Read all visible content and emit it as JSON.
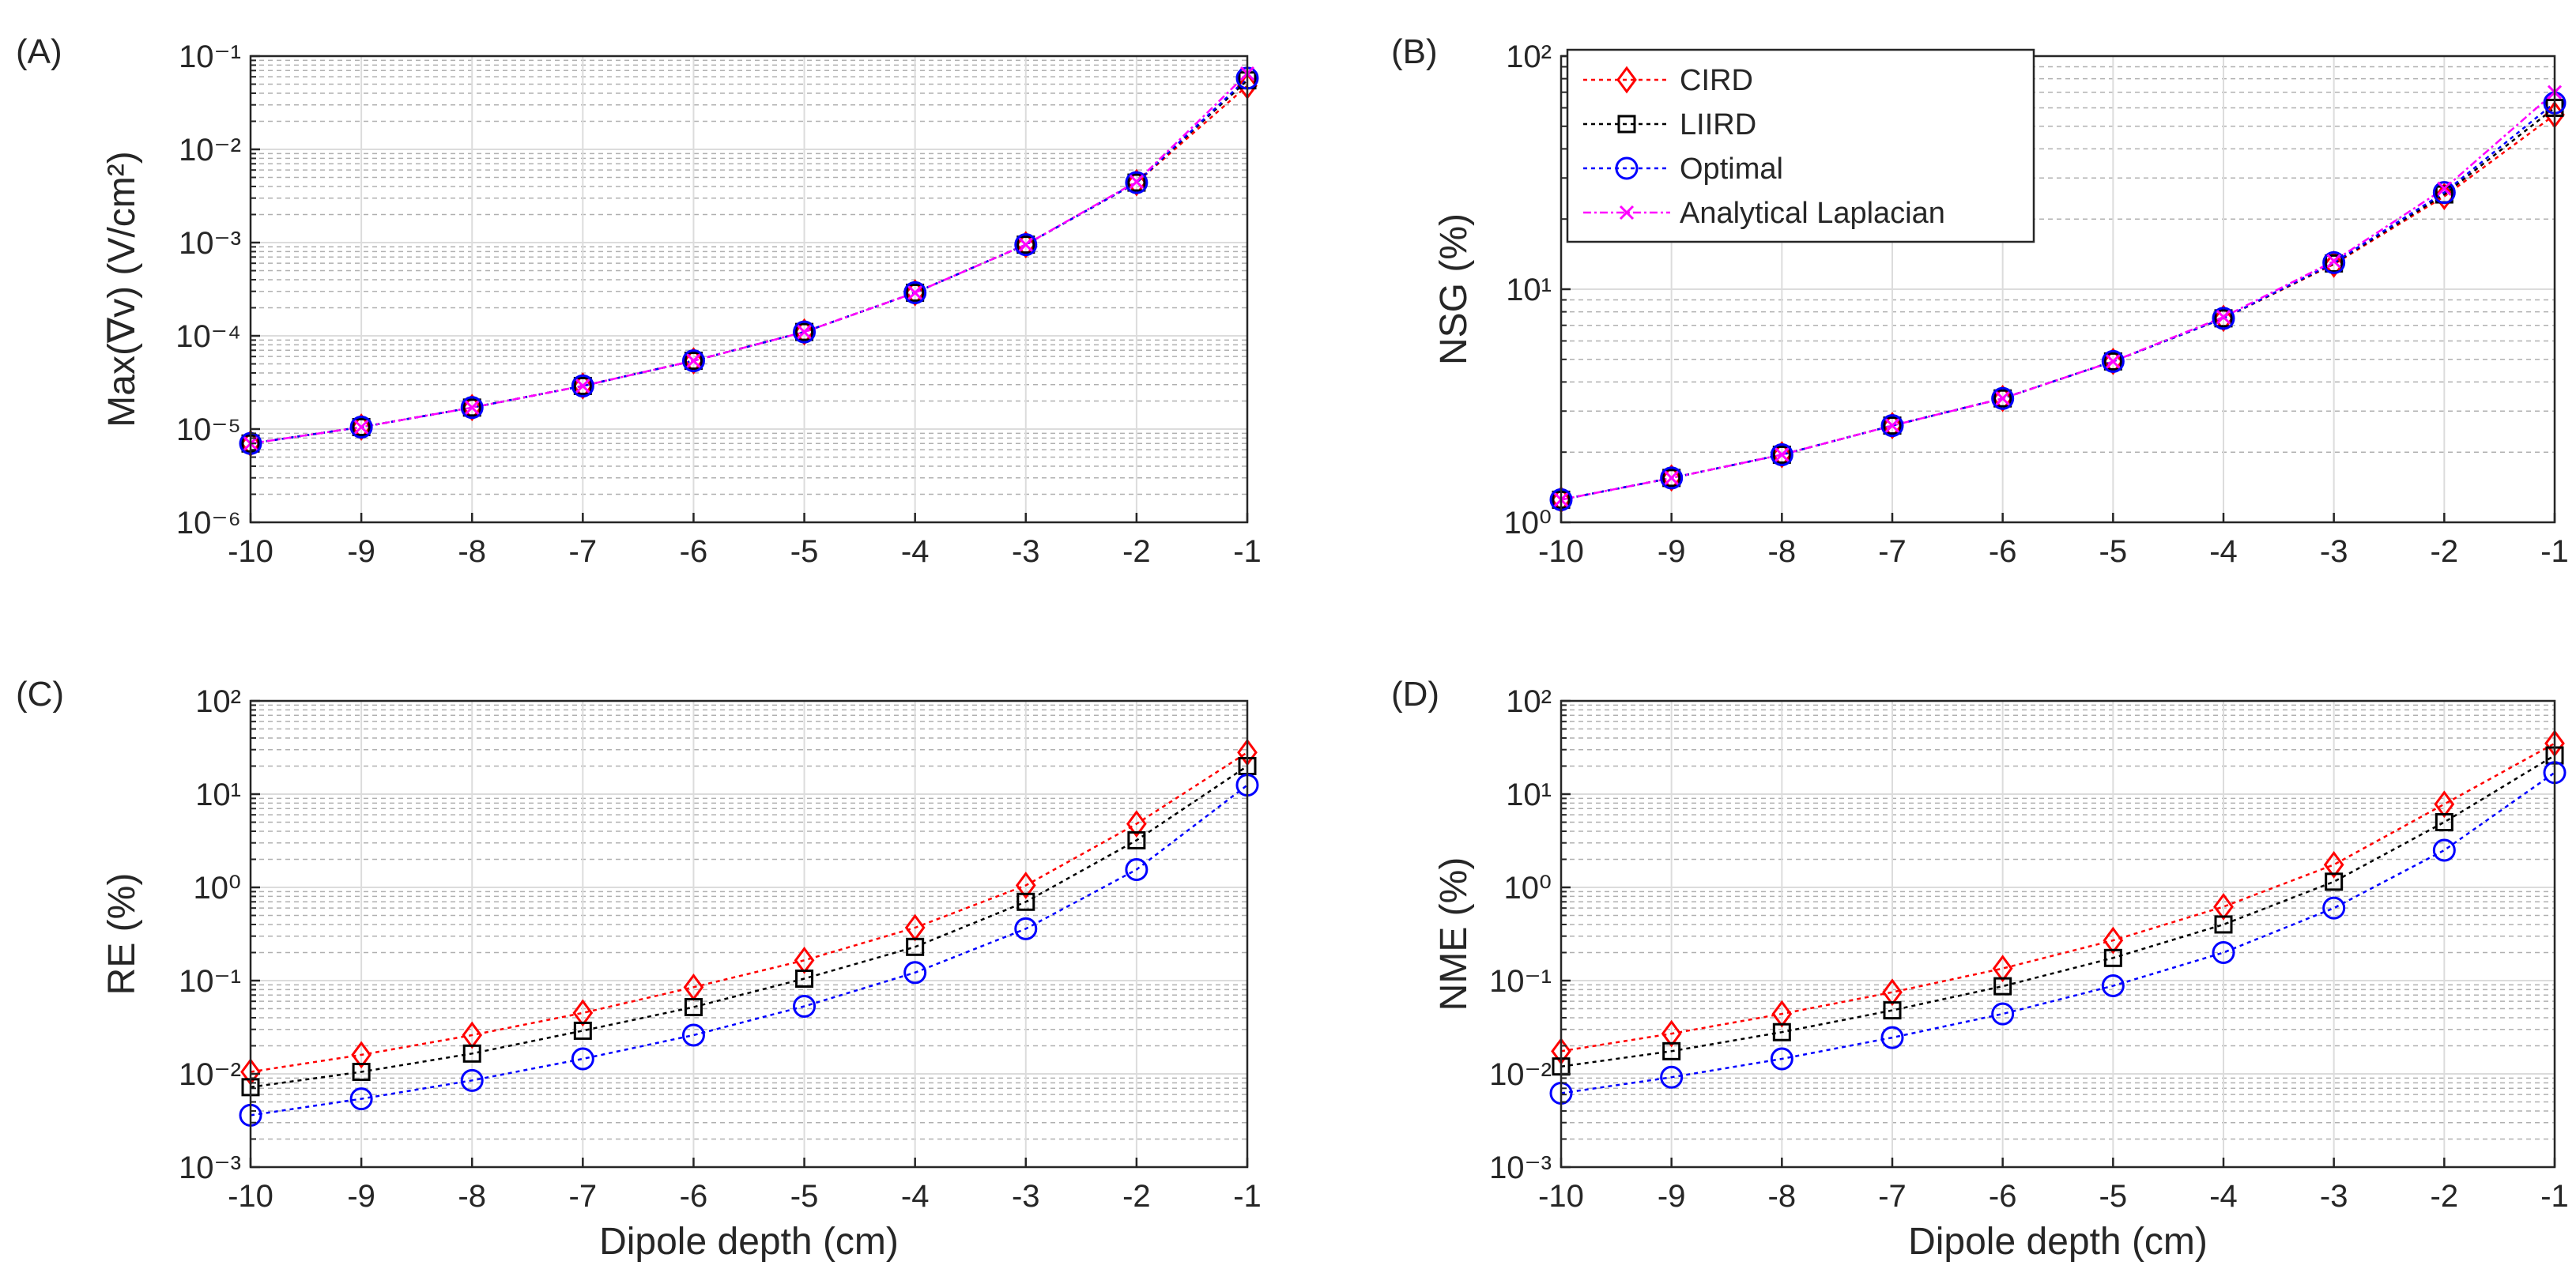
{
  "figure": {
    "xlabel_shared": "Dipole depth (cm)"
  },
  "chart_data": [
    {
      "id": "A",
      "panel_label": "(A)",
      "type": "line",
      "yscale": "log",
      "ylabel": "Max(∇v) (V/cm²)",
      "xlabel": "",
      "xlim": [
        -10,
        -1
      ],
      "ylim_exp": [
        -6,
        -1
      ],
      "x": [
        -10,
        -9,
        -8,
        -7,
        -6,
        -5,
        -4,
        -3,
        -2,
        -1
      ],
      "x_ticks": [
        "-10",
        "-9",
        "-8",
        "-7",
        "-6",
        "-5",
        "-4",
        "-3",
        "-2",
        "-1"
      ],
      "series": [
        {
          "name": "CIRD",
          "color": "#ff0000",
          "marker": "diamond",
          "values": [
            7e-06,
            1.05e-05,
            1.7e-05,
            2.9e-05,
            5.4e-05,
            0.00011,
            0.00029,
            0.00095,
            0.0044,
            0.048
          ]
        },
        {
          "name": "LIIRD",
          "color": "#000000",
          "marker": "square",
          "values": [
            7e-06,
            1.05e-05,
            1.7e-05,
            2.9e-05,
            5.4e-05,
            0.00011,
            0.00029,
            0.00095,
            0.0044,
            0.055
          ]
        },
        {
          "name": "Optimal",
          "color": "#0000ff",
          "marker": "circle",
          "values": [
            7e-06,
            1.05e-05,
            1.7e-05,
            2.9e-05,
            5.4e-05,
            0.00011,
            0.00029,
            0.00095,
            0.0044,
            0.058
          ]
        },
        {
          "name": "Analytical Laplacian",
          "color": "#ff00ff",
          "marker": "x",
          "values": [
            7e-06,
            1.05e-05,
            1.7e-05,
            2.9e-05,
            5.4e-05,
            0.00011,
            0.00029,
            0.00095,
            0.0045,
            0.065
          ]
        }
      ]
    },
    {
      "id": "B",
      "panel_label": "(B)",
      "type": "line",
      "yscale": "log",
      "ylabel": "NSG (%)",
      "xlabel": "",
      "xlim": [
        -10,
        -1
      ],
      "ylim_exp": [
        0,
        2
      ],
      "x": [
        -10,
        -9,
        -8,
        -7,
        -6,
        -5,
        -4,
        -3,
        -2,
        -1
      ],
      "x_ticks": [
        "-10",
        "-9",
        "-8",
        "-7",
        "-6",
        "-5",
        "-4",
        "-3",
        "-2",
        "-1"
      ],
      "legend": "top-left",
      "series": [
        {
          "name": "CIRD",
          "color": "#ff0000",
          "marker": "diamond",
          "values": [
            1.25,
            1.55,
            1.95,
            2.6,
            3.4,
            4.9,
            7.5,
            12.8,
            25,
            56
          ]
        },
        {
          "name": "LIIRD",
          "color": "#000000",
          "marker": "square",
          "values": [
            1.25,
            1.55,
            1.95,
            2.6,
            3.4,
            4.9,
            7.5,
            12.9,
            25.5,
            60
          ]
        },
        {
          "name": "Optimal",
          "color": "#0000ff",
          "marker": "circle",
          "values": [
            1.25,
            1.55,
            1.95,
            2.6,
            3.4,
            4.9,
            7.5,
            13,
            26,
            63
          ]
        },
        {
          "name": "Analytical Laplacian",
          "color": "#ff00ff",
          "marker": "x",
          "values": [
            1.25,
            1.55,
            1.95,
            2.6,
            3.4,
            4.9,
            7.6,
            13.2,
            27,
            70
          ]
        }
      ]
    },
    {
      "id": "C",
      "panel_label": "(C)",
      "type": "line",
      "yscale": "log",
      "ylabel": "RE (%)",
      "xlabel": "Dipole depth (cm)",
      "xlim": [
        -10,
        -1
      ],
      "ylim_exp": [
        -3,
        2
      ],
      "x": [
        -10,
        -9,
        -8,
        -7,
        -6,
        -5,
        -4,
        -3,
        -2,
        -1
      ],
      "x_ticks": [
        "-10",
        "-9",
        "-8",
        "-7",
        "-6",
        "-5",
        "-4",
        "-3",
        "-2",
        "-1"
      ],
      "series": [
        {
          "name": "CIRD",
          "color": "#ff0000",
          "marker": "diamond",
          "values": [
            0.0105,
            0.016,
            0.026,
            0.045,
            0.085,
            0.165,
            0.37,
            1.05,
            4.8,
            28
          ]
        },
        {
          "name": "LIIRD",
          "color": "#000000",
          "marker": "square",
          "values": [
            0.0072,
            0.0105,
            0.0165,
            0.029,
            0.052,
            0.105,
            0.23,
            0.7,
            3.2,
            20
          ]
        },
        {
          "name": "Optimal",
          "color": "#0000ff",
          "marker": "circle",
          "values": [
            0.0036,
            0.0054,
            0.0085,
            0.0145,
            0.026,
            0.053,
            0.122,
            0.36,
            1.55,
            12.5
          ]
        }
      ]
    },
    {
      "id": "D",
      "panel_label": "(D)",
      "type": "line",
      "yscale": "log",
      "ylabel": "NME (%)",
      "xlabel": "Dipole depth (cm)",
      "xlim": [
        -10,
        -1
      ],
      "ylim_exp": [
        -3,
        2
      ],
      "x": [
        -10,
        -9,
        -8,
        -7,
        -6,
        -5,
        -4,
        -3,
        -2,
        -1
      ],
      "x_ticks": [
        "-10",
        "-9",
        "-8",
        "-7",
        "-6",
        "-5",
        "-4",
        "-3",
        "-2",
        "-1"
      ],
      "series": [
        {
          "name": "CIRD",
          "color": "#ff0000",
          "marker": "diamond",
          "values": [
            0.0175,
            0.027,
            0.044,
            0.075,
            0.135,
            0.27,
            0.62,
            1.75,
            7.8,
            35
          ]
        },
        {
          "name": "LIIRD",
          "color": "#000000",
          "marker": "square",
          "values": [
            0.012,
            0.0175,
            0.028,
            0.048,
            0.087,
            0.175,
            0.4,
            1.15,
            5,
            26
          ]
        },
        {
          "name": "Optimal",
          "color": "#0000ff",
          "marker": "circle",
          "values": [
            0.0062,
            0.0092,
            0.0145,
            0.0245,
            0.044,
            0.088,
            0.2,
            0.6,
            2.5,
            17
          ]
        }
      ]
    }
  ]
}
